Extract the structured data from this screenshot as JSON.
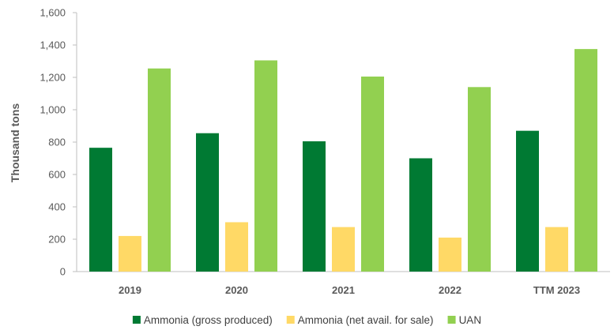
{
  "chart_data": {
    "type": "bar",
    "title": "",
    "xlabel": "",
    "ylabel": "Thousand tons",
    "ylim": [
      0,
      1600
    ],
    "yticks": [
      0,
      200,
      400,
      600,
      800,
      1000,
      1200,
      1400,
      1600
    ],
    "ytick_labels": [
      "0",
      "200",
      "400",
      "600",
      "800",
      "1,000",
      "1,200",
      "1,400",
      "1,600"
    ],
    "grid": false,
    "legend_position": "bottom",
    "categories": [
      "2019",
      "2020",
      "2021",
      "2022",
      "TTM 2023"
    ],
    "series": [
      {
        "name": "Ammonia (gross produced)",
        "color": "#007a33",
        "values": [
          765,
          855,
          805,
          700,
          870
        ]
      },
      {
        "name": "Ammonia (net avail. for sale)",
        "color": "#ffd966",
        "values": [
          220,
          305,
          275,
          210,
          275
        ]
      },
      {
        "name": "UAN",
        "color": "#92d050",
        "values": [
          1255,
          1305,
          1205,
          1140,
          1375
        ]
      }
    ]
  }
}
